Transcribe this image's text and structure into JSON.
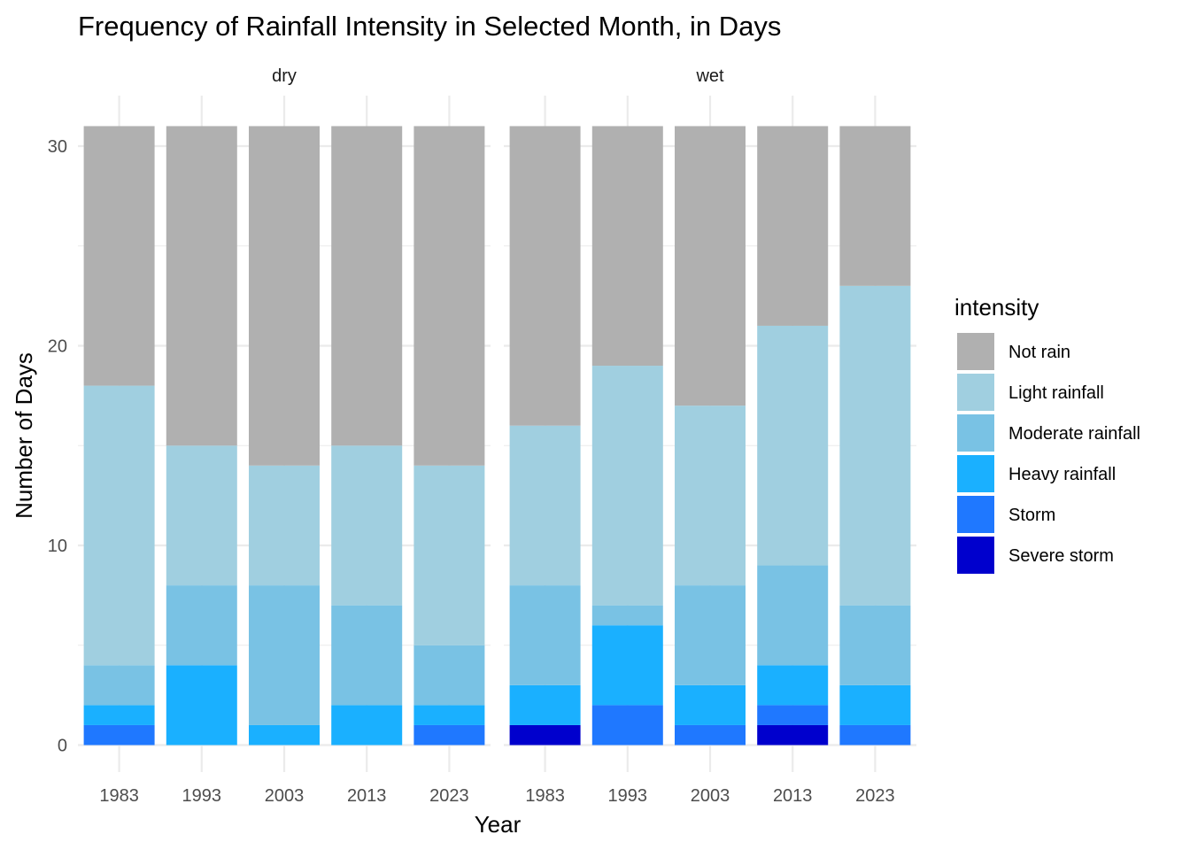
{
  "chart_data": {
    "type": "bar",
    "stacked": true,
    "title": "Frequency of Rainfall Intensity in Selected Month, in Days",
    "xlabel": "Year",
    "ylabel": "Number of Days",
    "ylim": [
      0,
      31
    ],
    "yticks": [
      "0",
      "10",
      "20",
      "30"
    ],
    "grid": true,
    "legend": {
      "title": "intensity",
      "placement": "right"
    },
    "series_order": [
      "Severe storm",
      "Storm",
      "Heavy rainfall",
      "Moderate rainfall",
      "Light rainfall",
      "Not rain"
    ],
    "legend_order": [
      "Not rain",
      "Light rainfall",
      "Moderate rainfall",
      "Heavy rainfall",
      "Storm",
      "Severe storm"
    ],
    "colors": {
      "Not rain": "#b0b0b0",
      "Light rainfall": "#a0cfe0",
      "Moderate rainfall": "#79c2e4",
      "Heavy rainfall": "#1ab0ff",
      "Storm": "#1f78ff",
      "Severe storm": "#0000cd"
    },
    "panels": [
      {
        "name": "dry",
        "categories": [
          "1983",
          "1993",
          "2003",
          "2013",
          "2023"
        ],
        "series": [
          {
            "name": "Severe storm",
            "values": [
              0,
              0,
              0,
              0,
              0
            ]
          },
          {
            "name": "Storm",
            "values": [
              1,
              0,
              0,
              0,
              1
            ]
          },
          {
            "name": "Heavy rainfall",
            "values": [
              1,
              4,
              1,
              2,
              1
            ]
          },
          {
            "name": "Moderate rainfall",
            "values": [
              2,
              4,
              7,
              5,
              3
            ]
          },
          {
            "name": "Light rainfall",
            "values": [
              14,
              7,
              6,
              8,
              9
            ]
          },
          {
            "name": "Not rain",
            "values": [
              13,
              16,
              17,
              16,
              17
            ]
          }
        ]
      },
      {
        "name": "wet",
        "categories": [
          "1983",
          "1993",
          "2003",
          "2013",
          "2023"
        ],
        "series": [
          {
            "name": "Severe storm",
            "values": [
              1,
              0,
              0,
              1,
              0
            ]
          },
          {
            "name": "Storm",
            "values": [
              0,
              2,
              1,
              1,
              1
            ]
          },
          {
            "name": "Heavy rainfall",
            "values": [
              2,
              4,
              2,
              2,
              2
            ]
          },
          {
            "name": "Moderate rainfall",
            "values": [
              5,
              1,
              5,
              5,
              4
            ]
          },
          {
            "name": "Light rainfall",
            "values": [
              8,
              12,
              9,
              12,
              16
            ]
          },
          {
            "name": "Not rain",
            "values": [
              15,
              12,
              14,
              10,
              8
            ]
          }
        ]
      }
    ]
  }
}
